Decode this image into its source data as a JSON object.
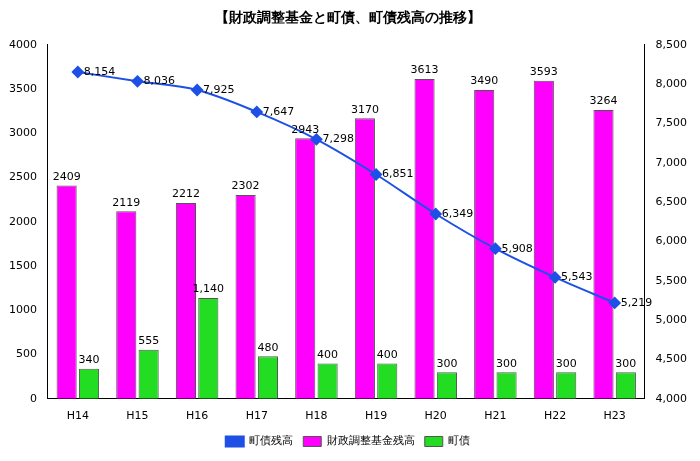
{
  "chart_data": {
    "type": "bar",
    "title": "【財政調整基金と町債、町債残高の推移】",
    "categories": [
      "H14",
      "H15",
      "H16",
      "H17",
      "H18",
      "H19",
      "H20",
      "H21",
      "H22",
      "H23"
    ],
    "series": [
      {
        "name": "財政調整基金残高",
        "type": "bar",
        "color": "#ff00ff",
        "values": [
          2409,
          2119,
          2212,
          2302,
          2943,
          3170,
          3613,
          3490,
          3593,
          3264
        ]
      },
      {
        "name": "町債",
        "type": "bar",
        "color": "#22dd22",
        "values": [
          340,
          555,
          1140,
          480,
          400,
          400,
          300,
          300,
          300,
          300
        ],
        "value_labels": [
          "340",
          "555",
          "1,140",
          "480",
          "400",
          "400",
          "300",
          "300",
          "300",
          "300"
        ]
      },
      {
        "name": "町債残高",
        "type": "line",
        "axis": "y2",
        "color": "#1e50e6",
        "marker": "diamond",
        "line_style": "solid",
        "values": [
          8154,
          8036,
          7925,
          7647,
          7298,
          6851,
          6349,
          5908,
          5543,
          5219
        ],
        "value_labels": [
          "8,154",
          "8,036",
          "7,925",
          "7,647",
          "7,298",
          "6,851",
          "6,349",
          "5,908",
          "5,543",
          "5,219"
        ]
      }
    ],
    "ylim": [
      0,
      4000
    ],
    "yticks": [
      0,
      500,
      1000,
      1500,
      2000,
      2500,
      3000,
      3500,
      4000
    ],
    "y2lim": [
      4000,
      8500
    ],
    "y2ticks": [
      {
        "value": 4000,
        "label": "4,000"
      },
      {
        "value": 4500,
        "label": "4,500"
      },
      {
        "value": 5000,
        "label": "5,000"
      },
      {
        "value": 5500,
        "label": "5,500"
      },
      {
        "value": 6000,
        "label": "6,000"
      },
      {
        "value": 6500,
        "label": "6,500"
      },
      {
        "value": 7000,
        "label": "7,000"
      },
      {
        "value": 7500,
        "label": "7,500"
      },
      {
        "value": 8000,
        "label": "8,000"
      },
      {
        "value": 8500,
        "label": "8,500"
      }
    ],
    "grid": false,
    "legend": "bottom",
    "data_labels": true
  }
}
